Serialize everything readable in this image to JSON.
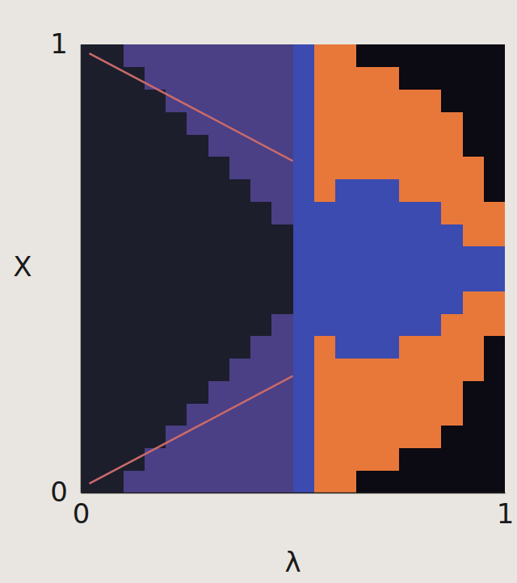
{
  "chart_data": {
    "type": "heatmap",
    "x_label": "λ",
    "y_label": "X",
    "xlim": [
      0,
      1
    ],
    "ylim": [
      0,
      1
    ],
    "xticks": [
      0,
      1
    ],
    "yticks": [
      0,
      1
    ],
    "x_edges": [
      0,
      0.05,
      0.1,
      0.15,
      0.2,
      0.25,
      0.3,
      0.35,
      0.4,
      0.45,
      0.5,
      0.55,
      0.6,
      0.65,
      0.7,
      0.75,
      0.8,
      0.85,
      0.9,
      0.95,
      1
    ],
    "y_edges": [
      0,
      0.05,
      0.1,
      0.15,
      0.2,
      0.25,
      0.3,
      0.35,
      0.4,
      0.45,
      0.5,
      0.55,
      0.6,
      0.65,
      0.7,
      0.75,
      0.8,
      0.85,
      0.9,
      0.95,
      1
    ],
    "colors": [
      "#0c0a12",
      "#1c1e2c",
      "#4b3f86",
      "#e8783a",
      "#3b4bb0"
    ],
    "cells": [
      [
        1,
        1,
        2,
        2,
        2,
        2,
        2,
        2,
        2,
        2,
        4,
        3,
        3,
        0,
        0,
        0,
        0,
        0,
        0,
        0
      ],
      [
        1,
        1,
        1,
        2,
        2,
        2,
        2,
        2,
        2,
        2,
        4,
        3,
        3,
        3,
        3,
        0,
        0,
        0,
        0,
        0
      ],
      [
        1,
        1,
        1,
        1,
        2,
        2,
        2,
        2,
        2,
        2,
        4,
        3,
        3,
        3,
        3,
        3,
        3,
        0,
        0,
        0
      ],
      [
        1,
        1,
        1,
        1,
        1,
        2,
        2,
        2,
        2,
        2,
        4,
        3,
        3,
        3,
        3,
        3,
        3,
        3,
        0,
        0
      ],
      [
        1,
        1,
        1,
        1,
        1,
        1,
        2,
        2,
        2,
        2,
        4,
        3,
        3,
        3,
        3,
        3,
        3,
        3,
        0,
        0
      ],
      [
        1,
        1,
        1,
        1,
        1,
        1,
        1,
        2,
        2,
        2,
        4,
        3,
        3,
        3,
        3,
        3,
        3,
        3,
        3,
        0
      ],
      [
        1,
        1,
        1,
        1,
        1,
        1,
        1,
        1,
        2,
        2,
        4,
        3,
        4,
        4,
        4,
        3,
        3,
        3,
        3,
        0
      ],
      [
        1,
        1,
        1,
        1,
        1,
        1,
        1,
        1,
        1,
        2,
        4,
        4,
        4,
        4,
        4,
        4,
        4,
        3,
        3,
        3
      ],
      [
        1,
        1,
        1,
        1,
        1,
        1,
        1,
        1,
        1,
        1,
        4,
        4,
        4,
        4,
        4,
        4,
        4,
        4,
        3,
        3
      ],
      [
        1,
        1,
        1,
        1,
        1,
        1,
        1,
        1,
        1,
        1,
        4,
        4,
        4,
        4,
        4,
        4,
        4,
        4,
        4,
        4
      ],
      [
        1,
        1,
        1,
        1,
        1,
        1,
        1,
        1,
        1,
        1,
        4,
        4,
        4,
        4,
        4,
        4,
        4,
        4,
        4,
        4
      ],
      [
        1,
        1,
        1,
        1,
        1,
        1,
        1,
        1,
        1,
        1,
        4,
        4,
        4,
        4,
        4,
        4,
        4,
        4,
        3,
        3
      ],
      [
        1,
        1,
        1,
        1,
        1,
        1,
        1,
        1,
        1,
        2,
        4,
        4,
        4,
        4,
        4,
        4,
        4,
        3,
        3,
        3
      ],
      [
        1,
        1,
        1,
        1,
        1,
        1,
        1,
        1,
        2,
        2,
        4,
        3,
        4,
        4,
        4,
        3,
        3,
        3,
        3,
        0
      ],
      [
        1,
        1,
        1,
        1,
        1,
        1,
        1,
        2,
        2,
        2,
        4,
        3,
        3,
        3,
        3,
        3,
        3,
        3,
        3,
        0
      ],
      [
        1,
        1,
        1,
        1,
        1,
        1,
        2,
        2,
        2,
        2,
        4,
        3,
        3,
        3,
        3,
        3,
        3,
        3,
        0,
        0
      ],
      [
        1,
        1,
        1,
        1,
        1,
        2,
        2,
        2,
        2,
        2,
        4,
        3,
        3,
        3,
        3,
        3,
        3,
        3,
        0,
        0
      ],
      [
        1,
        1,
        1,
        1,
        2,
        2,
        2,
        2,
        2,
        2,
        4,
        3,
        3,
        3,
        3,
        3,
        3,
        0,
        0,
        0
      ],
      [
        1,
        1,
        1,
        2,
        2,
        2,
        2,
        2,
        2,
        2,
        4,
        3,
        3,
        3,
        3,
        0,
        0,
        0,
        0,
        0
      ],
      [
        1,
        1,
        2,
        2,
        2,
        2,
        2,
        2,
        2,
        2,
        4,
        3,
        3,
        0,
        0,
        0,
        0,
        0,
        0,
        0
      ]
    ],
    "series": [
      {
        "type": "line",
        "color": "#c86a6a",
        "x": [
          0.02,
          0.5
        ],
        "values": [
          0.98,
          0.74
        ]
      },
      {
        "type": "line",
        "color": "#c86a6a",
        "x": [
          0.02,
          0.5
        ],
        "values": [
          0.02,
          0.26
        ]
      }
    ]
  }
}
